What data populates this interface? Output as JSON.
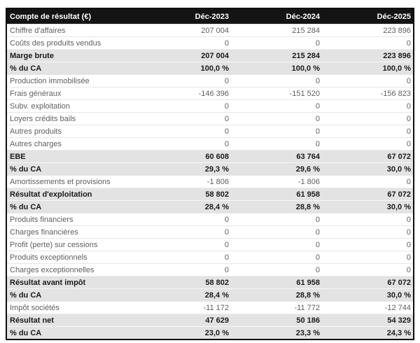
{
  "colors": {
    "header_bg": "#141414",
    "header_text": "#ffffff",
    "emphasis_row_bg": "#e3e3e3",
    "text_muted": "#5f5f5f",
    "text_strong": "#1a1a1a",
    "outer_border": "#0d0d0d"
  },
  "table": {
    "header": {
      "label": "Compte de résultat (€)",
      "cols": [
        "Déc-2023",
        "Déc-2024",
        "Déc-2025"
      ]
    },
    "rows": [
      {
        "label": "Chiffre d'affaires",
        "values": [
          "207 004",
          "215 284",
          "223 896"
        ],
        "emphasis": false
      },
      {
        "label": "Coûts des produits vendus",
        "values": [
          "0",
          "0",
          "0"
        ],
        "emphasis": false
      },
      {
        "label": "Marge brute",
        "values": [
          "207 004",
          "215 284",
          "223 896"
        ],
        "emphasis": true
      },
      {
        "label": "% du CA",
        "values": [
          "100,0 %",
          "100,0 %",
          "100,0 %"
        ],
        "emphasis": true
      },
      {
        "label": "Production immobilisée",
        "values": [
          "0",
          "0",
          "0"
        ],
        "emphasis": false
      },
      {
        "label": "Frais généraux",
        "values": [
          "-146 396",
          "-151 520",
          "-156 823"
        ],
        "emphasis": false
      },
      {
        "label": "Subv. exploitation",
        "values": [
          "0",
          "0",
          "0"
        ],
        "emphasis": false
      },
      {
        "label": "Loyers crédits bails",
        "values": [
          "0",
          "0",
          "0"
        ],
        "emphasis": false
      },
      {
        "label": "Autres produits",
        "values": [
          "0",
          "0",
          "0"
        ],
        "emphasis": false
      },
      {
        "label": "Autres charges",
        "values": [
          "0",
          "0",
          "0"
        ],
        "emphasis": false
      },
      {
        "label": "EBE",
        "values": [
          "60 608",
          "63 764",
          "67 072"
        ],
        "emphasis": true
      },
      {
        "label": "% du CA",
        "values": [
          "29,3 %",
          "29,6 %",
          "30,0 %"
        ],
        "emphasis": true
      },
      {
        "label": "Amortissements et provisions",
        "values": [
          "-1 806",
          "-1 806",
          "0"
        ],
        "emphasis": false
      },
      {
        "label": "Résultat d'exploitation",
        "values": [
          "58 802",
          "61 958",
          "67 072"
        ],
        "emphasis": true
      },
      {
        "label": "% du CA",
        "values": [
          "28,4 %",
          "28,8 %",
          "30,0 %"
        ],
        "emphasis": true
      },
      {
        "label": "Produits financiers",
        "values": [
          "0",
          "0",
          "0"
        ],
        "emphasis": false
      },
      {
        "label": "Charges financières",
        "values": [
          "0",
          "0",
          "0"
        ],
        "emphasis": false
      },
      {
        "label": "Profit (perte) sur cessions",
        "values": [
          "0",
          "0",
          "0"
        ],
        "emphasis": false
      },
      {
        "label": "Produits exceptionnels",
        "values": [
          "0",
          "0",
          "0"
        ],
        "emphasis": false
      },
      {
        "label": "Charges exceptionnelles",
        "values": [
          "0",
          "0",
          "0"
        ],
        "emphasis": false
      },
      {
        "label": "Résultat avant impôt",
        "values": [
          "58 802",
          "61 958",
          "67 072"
        ],
        "emphasis": true
      },
      {
        "label": "% du CA",
        "values": [
          "28,4 %",
          "28,8 %",
          "30,0 %"
        ],
        "emphasis": true
      },
      {
        "label": "Impôt sociétés",
        "values": [
          "-11 172",
          "-11 772",
          "-12 744"
        ],
        "emphasis": false
      },
      {
        "label": "Résultat net",
        "values": [
          "47 629",
          "50 186",
          "54 329"
        ],
        "emphasis": true
      },
      {
        "label": "% du CA",
        "values": [
          "23,0 %",
          "23,3 %",
          "24,3 %"
        ],
        "emphasis": true
      }
    ]
  }
}
